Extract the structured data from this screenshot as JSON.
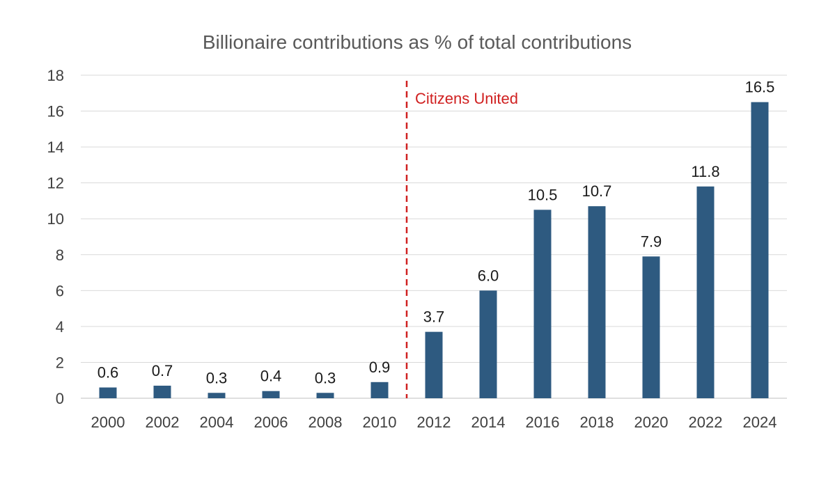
{
  "chart_data": {
    "type": "bar",
    "title": "Billionaire contributions as % of total contributions",
    "xlabel": "",
    "ylabel": "",
    "categories": [
      "2000",
      "2002",
      "2004",
      "2006",
      "2008",
      "2010",
      "2012",
      "2014",
      "2016",
      "2018",
      "2020",
      "2022",
      "2024"
    ],
    "values": [
      0.6,
      0.7,
      0.3,
      0.4,
      0.3,
      0.9,
      3.7,
      6.0,
      10.5,
      10.7,
      7.9,
      11.8,
      16.5
    ],
    "data_labels": [
      "0.6",
      "0.7",
      "0.3",
      "0.4",
      "0.3",
      "0.9",
      "3.7",
      "6.0",
      "10.5",
      "10.7",
      "7.9",
      "11.8",
      "16.5"
    ],
    "ylim": [
      0,
      18
    ],
    "yticks": [
      0,
      2,
      4,
      6,
      8,
      10,
      12,
      14,
      16,
      18
    ],
    "grid": true,
    "legend": "none",
    "bar_color": "#2e5a80",
    "annotation": {
      "text": "Citizens United",
      "between": [
        "2010",
        "2012"
      ],
      "color": "#d02020",
      "style": "dashed-vertical-line"
    }
  }
}
